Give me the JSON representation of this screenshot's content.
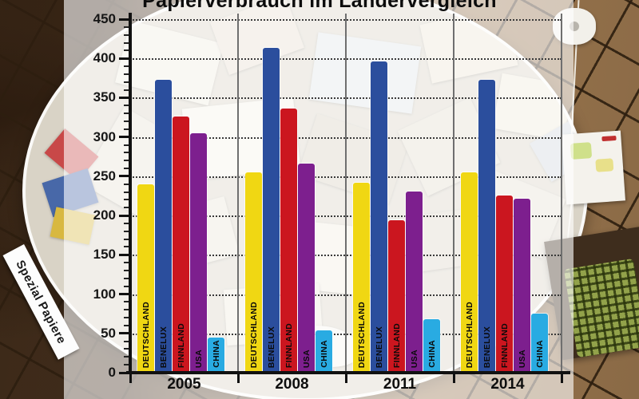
{
  "background": {
    "left_label": "Spezial Papiere"
  },
  "chart_data": {
    "type": "bar",
    "title": "Papierverbrauch im Ländervergleich",
    "xlabel": "",
    "ylabel": "",
    "categories": [
      "2005",
      "2008",
      "2011",
      "2014"
    ],
    "series": [
      {
        "name": "DEUTSCHLAND",
        "color": "#f0d713",
        "values": [
          240,
          255,
          242,
          255
        ]
      },
      {
        "name": "BENELUX",
        "color": "#2b4e9d",
        "values": [
          373,
          413,
          396,
          373
        ]
      },
      {
        "name": "FINNLAND",
        "color": "#cb161f",
        "values": [
          326,
          336,
          194,
          225
        ]
      },
      {
        "name": "USA",
        "color": "#7d1f8e",
        "values": [
          305,
          266,
          231,
          221
        ]
      },
      {
        "name": "CHINA",
        "color": "#29abe2",
        "values": [
          45,
          54,
          68,
          75
        ]
      }
    ],
    "ylim": [
      0,
      450
    ],
    "yticks": [
      0,
      50,
      100,
      150,
      200,
      250,
      300,
      350,
      400,
      450
    ],
    "ytick_minor_interval": 10,
    "grid": true,
    "grid_style": "dotted-horizontal",
    "legend_position": "labels-inside-bars"
  },
  "colors": {
    "axis": "#111111",
    "grid": "#3a3a3a",
    "separator": "#6f6f6f",
    "panel": "rgba(255,255,255,0.62)"
  }
}
